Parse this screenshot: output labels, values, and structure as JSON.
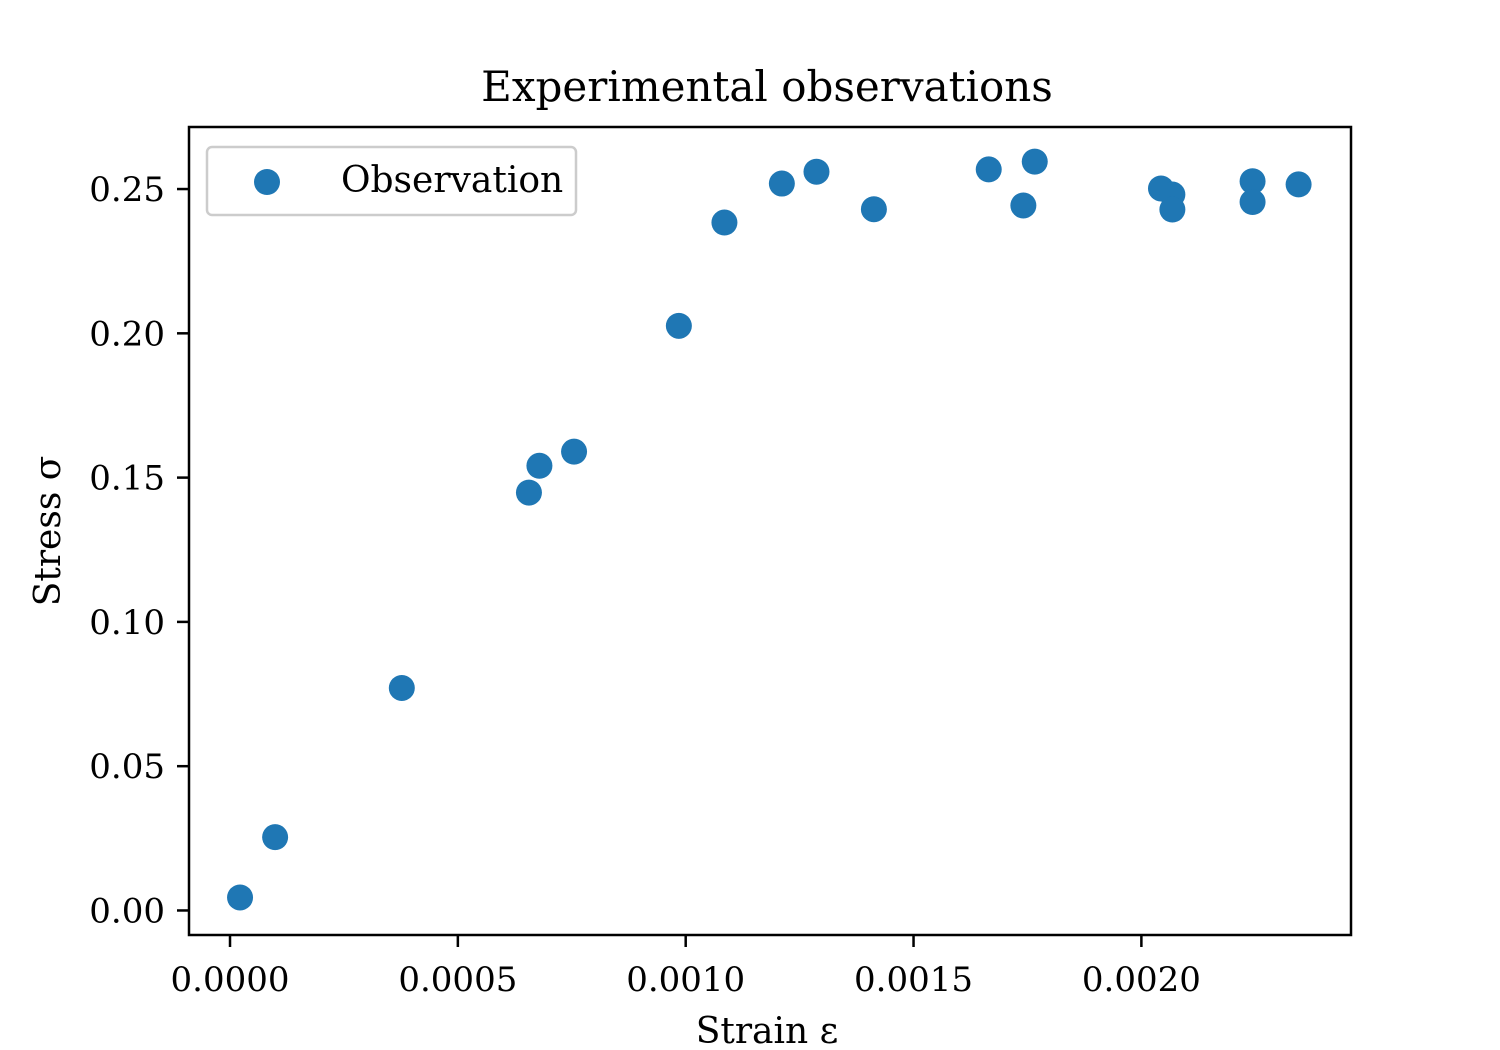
{
  "chart_data": {
    "type": "scatter",
    "title": "Experimental observations",
    "xlabel": "Strain ε",
    "ylabel": "Stress σ",
    "xlim": [
      -9e-05,
      0.00246
    ],
    "ylim": [
      -0.0085,
      0.2715
    ],
    "x_ticks": [
      0.0,
      0.0005,
      0.001,
      0.0015,
      0.002
    ],
    "x_tick_labels": [
      "0.0000",
      "0.0005",
      "0.0010",
      "0.0015",
      "0.0020"
    ],
    "y_ticks": [
      0.0,
      0.05,
      0.1,
      0.15,
      0.2,
      0.25
    ],
    "y_tick_labels": [
      "0.00",
      "0.05",
      "0.10",
      "0.15",
      "0.20",
      "0.25"
    ],
    "grid": false,
    "legend": {
      "position": "top-left",
      "entries": [
        "Observation"
      ]
    },
    "series": [
      {
        "name": "Observation",
        "color": "#1f77b4",
        "points": [
          {
            "x": 2.2e-05,
            "y": 0.0045
          },
          {
            "x": 9.9e-05,
            "y": 0.0254
          },
          {
            "x": 0.000377,
            "y": 0.0771
          },
          {
            "x": 0.000656,
            "y": 0.1448
          },
          {
            "x": 0.000679,
            "y": 0.1541
          },
          {
            "x": 0.000755,
            "y": 0.159
          },
          {
            "x": 0.000985,
            "y": 0.2026
          },
          {
            "x": 0.001085,
            "y": 0.2384
          },
          {
            "x": 0.001211,
            "y": 0.2519
          },
          {
            "x": 0.001287,
            "y": 0.256
          },
          {
            "x": 0.001413,
            "y": 0.243
          },
          {
            "x": 0.001665,
            "y": 0.2568
          },
          {
            "x": 0.001741,
            "y": 0.2443
          },
          {
            "x": 0.001766,
            "y": 0.2595
          },
          {
            "x": 0.002043,
            "y": 0.2502
          },
          {
            "x": 0.002068,
            "y": 0.2481
          },
          {
            "x": 0.002068,
            "y": 0.2429
          },
          {
            "x": 0.002244,
            "y": 0.2527
          },
          {
            "x": 0.002244,
            "y": 0.2455
          },
          {
            "x": 0.002345,
            "y": 0.2516
          }
        ]
      }
    ]
  }
}
